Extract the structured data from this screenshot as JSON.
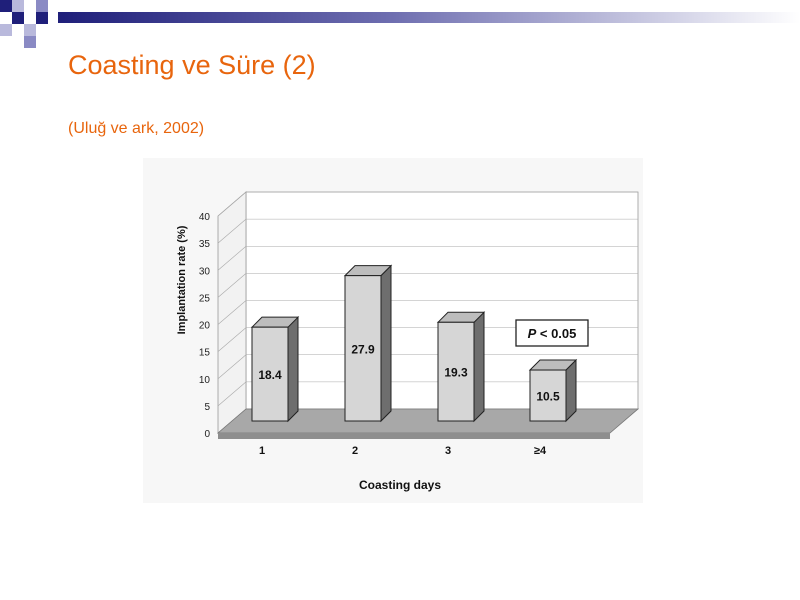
{
  "slide": {
    "title": "Coasting ve Süre (2)",
    "subtitle": "(Uluğ ve ark, 2002)"
  },
  "colors": {
    "title": "#E8650D",
    "deco_navy": "#1F1F7A",
    "bar_front": "#D6D6D6",
    "bar_side": "#6E6E6E",
    "bar_top": "#BDBDBD"
  },
  "chart_data": {
    "type": "bar",
    "categories": [
      "1",
      "2",
      "3",
      "≥4"
    ],
    "values": [
      18.4,
      27.9,
      19.3,
      10.5
    ],
    "value_labels": [
      "18.4",
      "27.9",
      "19.3",
      "10.5"
    ],
    "xlabel": "Coasting days",
    "ylabel": "Implantation rate (%)",
    "ylim": [
      0,
      40
    ],
    "yticks": [
      0,
      5,
      10,
      15,
      20,
      25,
      30,
      35,
      40
    ],
    "annotation": {
      "prefix": "P",
      "text": " < 0.05"
    },
    "grid": true,
    "style": "3d"
  }
}
